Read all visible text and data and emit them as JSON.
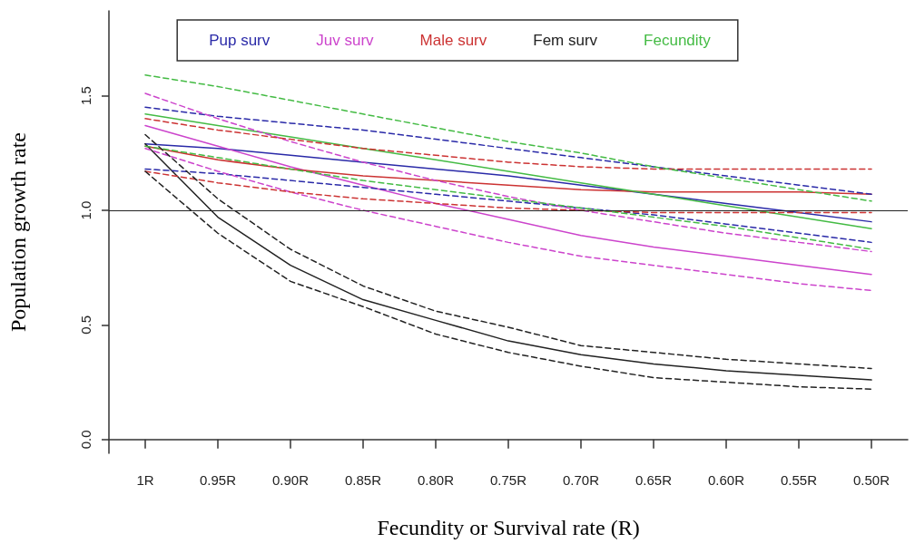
{
  "chart_data": {
    "type": "line",
    "xlabel": "Fecundity or Survival rate (R)",
    "ylabel": "Population growth rate",
    "categories": [
      "1R",
      "0.95R",
      "0.90R",
      "0.85R",
      "0.80R",
      "0.75R",
      "0.70R",
      "0.65R",
      "0.60R",
      "0.55R",
      "0.50R"
    ],
    "ylim": [
      -0.06,
      1.87
    ],
    "yticks": [
      {
        "value": 0,
        "label": "0.0"
      },
      {
        "value": 0.5,
        "label": "0.5"
      },
      {
        "value": 1,
        "label": "1.0"
      },
      {
        "value": 1.5,
        "label": "1.5"
      }
    ],
    "grid": false,
    "legend": "top",
    "marker": "none",
    "ref_lines": [
      {
        "axis": "y",
        "value": 1,
        "color": "#222222"
      }
    ],
    "series": [
      {
        "name": "Pup surv",
        "color": "#2a2aa8",
        "line_style": "solid",
        "values": [
          1.29,
          1.27,
          1.24,
          1.21,
          1.18,
          1.15,
          1.11,
          1.07,
          1.03,
          0.99,
          0.95
        ]
      },
      {
        "name": "Juv surv",
        "color": "#cc44cc",
        "line_style": "solid",
        "values": [
          1.37,
          1.28,
          1.19,
          1.11,
          1.03,
          0.96,
          0.89,
          0.84,
          0.8,
          0.76,
          0.72
        ]
      },
      {
        "name": "Male surv",
        "color": "#cc3333",
        "line_style": "solid",
        "values": [
          1.28,
          1.22,
          1.18,
          1.15,
          1.13,
          1.11,
          1.09,
          1.08,
          1.08,
          1.08,
          1.07
        ]
      },
      {
        "name": "Fem surv",
        "color": "#222222",
        "line_style": "solid",
        "values": [
          1.29,
          0.97,
          0.76,
          0.61,
          0.52,
          0.43,
          0.37,
          0.33,
          0.3,
          0.28,
          0.26
        ]
      },
      {
        "name": "Fecundity",
        "color": "#44bb44",
        "line_style": "solid",
        "values": [
          1.42,
          1.37,
          1.32,
          1.27,
          1.22,
          1.17,
          1.12,
          1.07,
          1.02,
          0.97,
          0.92
        ]
      },
      {
        "color": "#2a2aa8",
        "line_style": "dashed",
        "values": [
          1.45,
          1.41,
          1.38,
          1.35,
          1.31,
          1.27,
          1.23,
          1.19,
          1.15,
          1.11,
          1.07
        ]
      },
      {
        "color": "#2a2aa8",
        "line_style": "dashed",
        "values": [
          1.18,
          1.16,
          1.13,
          1.1,
          1.07,
          1.04,
          1.01,
          0.98,
          0.94,
          0.9,
          0.86
        ]
      },
      {
        "color": "#cc44cc",
        "line_style": "dashed",
        "values": [
          1.51,
          1.4,
          1.3,
          1.21,
          1.13,
          1.06,
          1.0,
          0.95,
          0.9,
          0.86,
          0.82
        ]
      },
      {
        "color": "#cc44cc",
        "line_style": "dashed",
        "values": [
          1.27,
          1.17,
          1.08,
          1.0,
          0.93,
          0.86,
          0.8,
          0.76,
          0.72,
          0.68,
          0.65
        ]
      },
      {
        "color": "#cc3333",
        "line_style": "dashed",
        "values": [
          1.4,
          1.35,
          1.31,
          1.27,
          1.24,
          1.21,
          1.19,
          1.18,
          1.18,
          1.18,
          1.18
        ]
      },
      {
        "color": "#cc3333",
        "line_style": "dashed",
        "values": [
          1.17,
          1.12,
          1.08,
          1.05,
          1.03,
          1.01,
          1.0,
          0.99,
          0.99,
          0.99,
          0.99
        ]
      },
      {
        "color": "#222222",
        "line_style": "dashed",
        "values": [
          1.33,
          1.05,
          0.83,
          0.67,
          0.56,
          0.49,
          0.41,
          0.38,
          0.35,
          0.33,
          0.31
        ]
      },
      {
        "color": "#222222",
        "line_style": "dashed",
        "values": [
          1.17,
          0.9,
          0.69,
          0.58,
          0.46,
          0.38,
          0.32,
          0.27,
          0.25,
          0.23,
          0.22
        ]
      },
      {
        "color": "#44bb44",
        "line_style": "dashed",
        "values": [
          1.59,
          1.54,
          1.48,
          1.42,
          1.36,
          1.3,
          1.25,
          1.19,
          1.14,
          1.09,
          1.04
        ]
      },
      {
        "color": "#44bb44",
        "line_style": "dashed",
        "values": [
          1.28,
          1.23,
          1.18,
          1.13,
          1.09,
          1.05,
          1.01,
          0.97,
          0.93,
          0.88,
          0.83
        ]
      }
    ]
  }
}
